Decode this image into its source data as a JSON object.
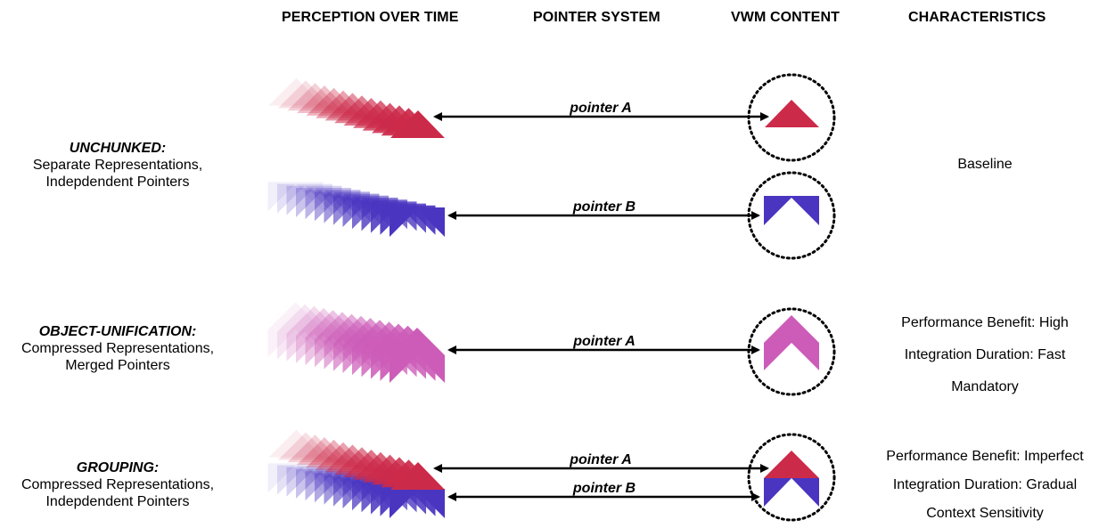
{
  "headers": {
    "perception": "PERCEPTION OVER TIME",
    "pointer": "POINTER SYSTEM",
    "vwm": "VWM CONTENT",
    "characteristics": "CHARACTERISTICS"
  },
  "rows": {
    "unchunked": {
      "title": "UNCHUNKED:",
      "line1": "Separate Representations,",
      "line2": "Indepdendent Pointers",
      "pointer_a": "pointer A",
      "pointer_b": "pointer B",
      "characteristics": [
        "Baseline"
      ]
    },
    "object_unification": {
      "title": "OBJECT-UNIFICATION:",
      "line1": "Compressed Representations,",
      "line2": "Merged Pointers",
      "pointer_a": "pointer A",
      "characteristics": [
        "Performance Benefit: High",
        "Integration Duration: Fast",
        "Mandatory"
      ]
    },
    "grouping": {
      "title": "GROUPING:",
      "line1": "Compressed Representations,",
      "line2": "Indepdendent Pointers",
      "pointer_a": "pointer A",
      "pointer_b": "pointer B",
      "characteristics": [
        "Performance Benefit: Imperfect",
        "Integration Duration: Gradual",
        "Context Sensitivity"
      ]
    }
  },
  "colors": {
    "red": "#cc2a49",
    "blue": "#4a35c0",
    "pink": "#cc5cb8",
    "arrow": "#000000"
  }
}
